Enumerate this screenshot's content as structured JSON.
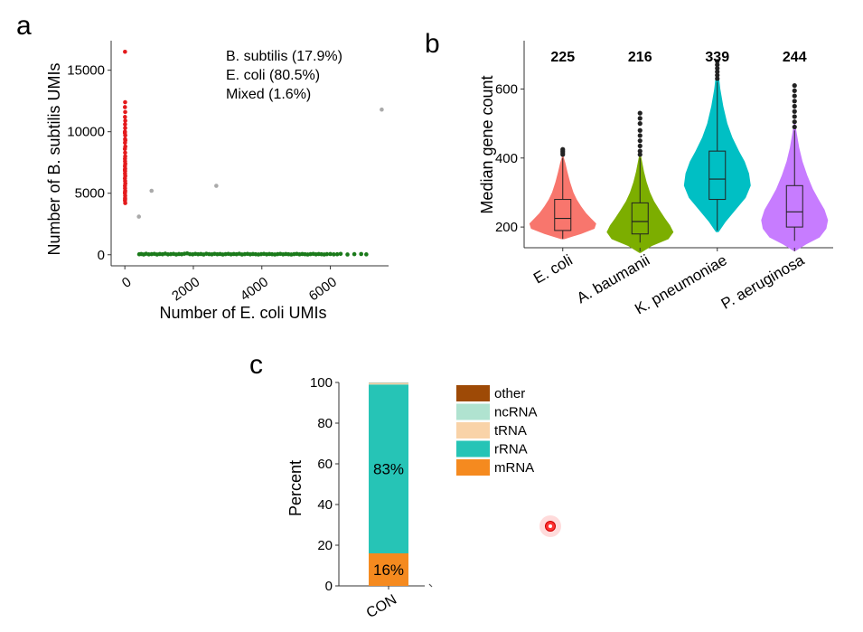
{
  "panels": {
    "a": "a",
    "b": "b",
    "c": "c"
  },
  "chart_data": [
    {
      "type": "scatter",
      "panel": "a",
      "xlabel": "Number of E. coli UMIs",
      "ylabel": "Number of B. subtilis UMIs",
      "xlim": [
        -400,
        7700
      ],
      "ylim": [
        -900,
        17400
      ],
      "xticks": [
        0,
        2000,
        4000,
        6000
      ],
      "xtick_labels": [
        "0",
        "2000",
        "4000",
        "6000"
      ],
      "yticks": [
        0,
        5000,
        10000,
        15000
      ],
      "ytick_labels": [
        "0",
        "5000",
        "10000",
        "15000"
      ],
      "legend_lines": [
        "B. subtilis (17.9%)",
        "E. coli (80.5%)",
        "Mixed (1.6%)"
      ],
      "series": [
        {
          "color": "#e41a1c",
          "points": [
            [
              5,
              16500
            ],
            [
              8,
              12400
            ],
            [
              3,
              12000
            ],
            [
              10,
              11600
            ],
            [
              4,
              11200
            ],
            [
              12,
              10900
            ],
            [
              6,
              10600
            ],
            [
              9,
              10300
            ],
            [
              3,
              10000
            ],
            [
              11,
              9700
            ],
            [
              7,
              9400
            ],
            [
              5,
              9100
            ],
            [
              13,
              8800
            ],
            [
              2,
              8600
            ],
            [
              8,
              8300
            ],
            [
              10,
              8000
            ],
            [
              4,
              7800
            ],
            [
              6,
              7600
            ],
            [
              12,
              7400
            ],
            [
              3,
              7200
            ],
            [
              9,
              7000
            ],
            [
              7,
              6800
            ],
            [
              5,
              6600
            ],
            [
              11,
              6400
            ],
            [
              2,
              6200
            ],
            [
              8,
              6000
            ],
            [
              13,
              5800
            ],
            [
              4,
              5600
            ],
            [
              6,
              5400
            ],
            [
              10,
              5200
            ],
            [
              3,
              5000
            ],
            [
              9,
              4800
            ],
            [
              7,
              4600
            ],
            [
              5,
              4400
            ],
            [
              11,
              4200
            ],
            [
              1,
              9900
            ],
            [
              14,
              9300
            ],
            [
              2,
              6900
            ],
            [
              6,
              5100
            ],
            [
              8,
              4500
            ]
          ]
        },
        {
          "color": "#1a7a1a",
          "points": [
            [
              420,
              40
            ],
            [
              480,
              60
            ],
            [
              550,
              20
            ],
            [
              620,
              80
            ],
            [
              700,
              30
            ],
            [
              780,
              50
            ],
            [
              860,
              70
            ],
            [
              940,
              20
            ],
            [
              1020,
              60
            ],
            [
              1100,
              40
            ],
            [
              1180,
              90
            ],
            [
              1260,
              30
            ],
            [
              1340,
              50
            ],
            [
              1420,
              70
            ],
            [
              1500,
              20
            ],
            [
              1580,
              60
            ],
            [
              1660,
              40
            ],
            [
              1740,
              80
            ],
            [
              1820,
              110
            ],
            [
              1900,
              50
            ],
            [
              1980,
              30
            ],
            [
              2060,
              70
            ],
            [
              2140,
              40
            ],
            [
              2220,
              60
            ],
            [
              2300,
              20
            ],
            [
              2380,
              80
            ],
            [
              2460,
              50
            ],
            [
              2540,
              30
            ],
            [
              2620,
              70
            ],
            [
              2700,
              40
            ],
            [
              2780,
              60
            ],
            [
              2860,
              20
            ],
            [
              2940,
              50
            ],
            [
              3020,
              70
            ],
            [
              3100,
              30
            ],
            [
              3180,
              60
            ],
            [
              3260,
              40
            ],
            [
              3340,
              80
            ],
            [
              3420,
              20
            ],
            [
              3500,
              50
            ],
            [
              3580,
              70
            ],
            [
              3660,
              30
            ],
            [
              3740,
              60
            ],
            [
              3820,
              40
            ],
            [
              3900,
              20
            ],
            [
              3980,
              50
            ],
            [
              4060,
              70
            ],
            [
              4140,
              30
            ],
            [
              4220,
              60
            ],
            [
              4300,
              40
            ],
            [
              4380,
              20
            ],
            [
              4460,
              50
            ],
            [
              4540,
              70
            ],
            [
              4620,
              30
            ],
            [
              4700,
              60
            ],
            [
              4780,
              40
            ],
            [
              4860,
              20
            ],
            [
              4940,
              50
            ],
            [
              5020,
              70
            ],
            [
              5100,
              30
            ],
            [
              5180,
              60
            ],
            [
              5260,
              40
            ],
            [
              5340,
              20
            ],
            [
              5420,
              50
            ],
            [
              5500,
              70
            ],
            [
              5580,
              30
            ],
            [
              5660,
              60
            ],
            [
              5740,
              40
            ],
            [
              5820,
              20
            ],
            [
              5900,
              50
            ],
            [
              6000,
              60
            ],
            [
              6100,
              30
            ],
            [
              6200,
              40
            ],
            [
              6300,
              70
            ],
            [
              6500,
              20
            ],
            [
              6700,
              50
            ],
            [
              6900,
              60
            ],
            [
              7050,
              30
            ]
          ]
        },
        {
          "color": "#aaaaaa",
          "points": [
            [
              410,
              3100
            ],
            [
              780,
              5200
            ],
            [
              2670,
              5600
            ],
            [
              7500,
              11800
            ]
          ]
        }
      ]
    },
    {
      "type": "violin",
      "panel": "b",
      "ylabel": "Median gene count",
      "ylim": [
        140,
        740
      ],
      "yticks": [
        200,
        400,
        600
      ],
      "ytick_labels": [
        "200",
        "400",
        "600"
      ],
      "categories": [
        "E. coli",
        "A. baumanii",
        "K. pneumoniae",
        "P. aeruginosa"
      ],
      "medians_text": [
        "225",
        "216",
        "339",
        "244"
      ],
      "colors": [
        "#f8766d",
        "#7cae00",
        "#00bfc4",
        "#c77cff"
      ],
      "groups": [
        {
          "min": 165,
          "max": 405,
          "q1": 190,
          "median": 225,
          "q3": 280,
          "whisker_low": 165,
          "whisker_high": 400,
          "outliers": [
            410,
            415,
            420,
            425
          ],
          "profile": [
            [
              165,
              0.05
            ],
            [
              180,
              0.55
            ],
            [
              195,
              0.95
            ],
            [
              210,
              1.0
            ],
            [
              225,
              0.85
            ],
            [
              240,
              0.7
            ],
            [
              260,
              0.55
            ],
            [
              280,
              0.42
            ],
            [
              300,
              0.32
            ],
            [
              330,
              0.22
            ],
            [
              360,
              0.14
            ],
            [
              385,
              0.08
            ],
            [
              405,
              0.02
            ]
          ]
        },
        {
          "min": 125,
          "max": 410,
          "q1": 180,
          "median": 216,
          "q3": 270,
          "whisker_low": 155,
          "whisker_high": 400,
          "outliers": [
            410,
            420,
            435,
            450,
            465,
            480,
            500,
            515,
            530
          ],
          "profile": [
            [
              125,
              0.02
            ],
            [
              145,
              0.35
            ],
            [
              165,
              0.85
            ],
            [
              185,
              1.0
            ],
            [
              205,
              0.9
            ],
            [
              225,
              0.75
            ],
            [
              250,
              0.58
            ],
            [
              275,
              0.42
            ],
            [
              300,
              0.3
            ],
            [
              330,
              0.2
            ],
            [
              360,
              0.12
            ],
            [
              390,
              0.06
            ],
            [
              410,
              0.02
            ]
          ]
        },
        {
          "min": 185,
          "max": 660,
          "q1": 280,
          "median": 339,
          "q3": 420,
          "whisker_low": 190,
          "whisker_high": 620,
          "outliers": [
            630,
            640,
            650,
            660,
            670,
            680
          ],
          "profile": [
            [
              185,
              0.04
            ],
            [
              215,
              0.25
            ],
            [
              250,
              0.55
            ],
            [
              285,
              0.85
            ],
            [
              320,
              1.0
            ],
            [
              355,
              0.95
            ],
            [
              390,
              0.82
            ],
            [
              420,
              0.65
            ],
            [
              460,
              0.45
            ],
            [
              500,
              0.3
            ],
            [
              550,
              0.18
            ],
            [
              600,
              0.09
            ],
            [
              660,
              0.02
            ]
          ]
        },
        {
          "min": 130,
          "max": 500,
          "q1": 200,
          "median": 244,
          "q3": 320,
          "whisker_low": 160,
          "whisker_high": 480,
          "outliers": [
            490,
            505,
            520,
            535,
            550,
            565,
            580,
            595,
            610
          ],
          "profile": [
            [
              130,
              0.02
            ],
            [
              150,
              0.35
            ],
            [
              170,
              0.75
            ],
            [
              195,
              0.95
            ],
            [
              220,
              1.0
            ],
            [
              250,
              0.9
            ],
            [
              280,
              0.72
            ],
            [
              310,
              0.55
            ],
            [
              350,
              0.38
            ],
            [
              390,
              0.24
            ],
            [
              430,
              0.14
            ],
            [
              470,
              0.07
            ],
            [
              500,
              0.02
            ]
          ]
        }
      ]
    },
    {
      "type": "bar",
      "panel": "c",
      "stacked": true,
      "ylabel": "Percent",
      "ylim": [
        0,
        100
      ],
      "yticks": [
        0,
        20,
        40,
        60,
        80,
        100
      ],
      "ytick_labels": [
        "0",
        "20",
        "40",
        "60",
        "80",
        "100"
      ],
      "categories": [
        "CON"
      ],
      "series": [
        {
          "name": "mRNA",
          "color": "#f58a1f",
          "values": [
            16
          ],
          "label": "16%"
        },
        {
          "name": "rRNA",
          "color": "#26c4b6",
          "values": [
            83
          ],
          "label": "83%"
        },
        {
          "name": "tRNA",
          "color": "#f9d3a8",
          "values": [
            0.6
          ],
          "label": ""
        },
        {
          "name": "ncRNA",
          "color": "#b0e3d0",
          "values": [
            0.3
          ],
          "label": ""
        },
        {
          "name": "other",
          "color": "#9e4a06",
          "values": [
            0.1
          ],
          "label": ""
        }
      ],
      "legend_order": [
        "other",
        "ncRNA",
        "tRNA",
        "rRNA",
        "mRNA"
      ],
      "legend_placement": "right"
    }
  ]
}
